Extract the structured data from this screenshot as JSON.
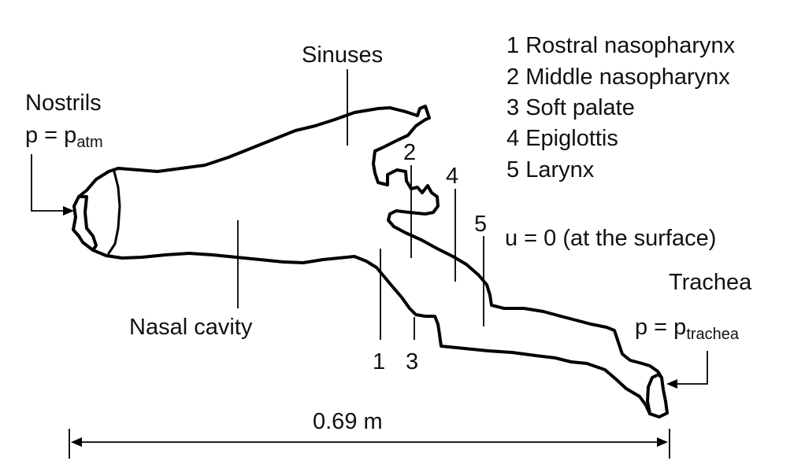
{
  "labels": {
    "sinuses": "Sinuses",
    "nostrils": "Nostrils",
    "nostrils_p": "p = p",
    "nostrils_sub": "atm",
    "nasal_cavity": "Nasal cavity",
    "trachea": "Trachea",
    "trachea_p": "p = p",
    "trachea_sub": "trachea",
    "surface_condition": "u = 0 (at the surface)",
    "length": "0.69 m"
  },
  "section_markers": [
    "1",
    "2",
    "3",
    "4",
    "5"
  ],
  "legend": [
    {
      "num": "1",
      "name": "Rostral nasopharynx"
    },
    {
      "num": "2",
      "name": "Middle nasopharynx"
    },
    {
      "num": "3",
      "name": "Soft palate"
    },
    {
      "num": "4",
      "name": "Epiglottis"
    },
    {
      "num": "5",
      "name": "Larynx"
    }
  ]
}
